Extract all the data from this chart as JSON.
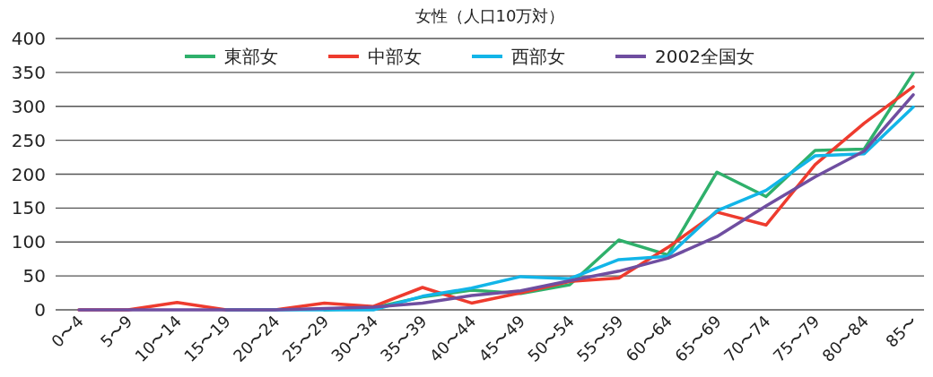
{
  "chart_data": {
    "type": "line",
    "title": "女性（人口10万対）",
    "categories": [
      "0〜4",
      "5〜9",
      "10〜14",
      "15〜19",
      "20〜24",
      "25〜29",
      "30〜34",
      "35〜39",
      "40〜44",
      "45〜49",
      "50〜54",
      "55〜59",
      "60〜64",
      "65〜69",
      "70〜74",
      "75〜79",
      "80〜84",
      "85〜"
    ],
    "series": [
      {
        "name": "東部女",
        "color": "#2fb06b",
        "values": [
          null,
          null,
          null,
          null,
          null,
          0,
          3,
          19,
          29,
          24,
          37,
          103,
          81,
          203,
          167,
          235,
          237,
          349
        ]
      },
      {
        "name": "中部女",
        "color": "#ee3b2e",
        "values": [
          0,
          0,
          11,
          0,
          0,
          10,
          5,
          33,
          10,
          25,
          42,
          47,
          92,
          144,
          125,
          214,
          275,
          329
        ]
      },
      {
        "name": "西部女",
        "color": "#12b5e8",
        "values": [
          null,
          null,
          null,
          0,
          0,
          0,
          0,
          20,
          32,
          49,
          46,
          74,
          79,
          146,
          176,
          227,
          230,
          299
        ]
      },
      {
        "name": "2002全国女",
        "color": "#6f4ea0",
        "values": [
          0,
          0,
          0,
          0,
          0,
          2,
          4,
          10,
          21,
          28,
          43,
          57,
          76,
          108,
          153,
          196,
          234,
          317
        ]
      }
    ],
    "ylim": [
      0,
      400
    ],
    "yticks": [
      0,
      50,
      100,
      150,
      200,
      250,
      300,
      350,
      400
    ],
    "grid": "y",
    "legend": "top",
    "marker": "none",
    "line_style": "solid"
  }
}
